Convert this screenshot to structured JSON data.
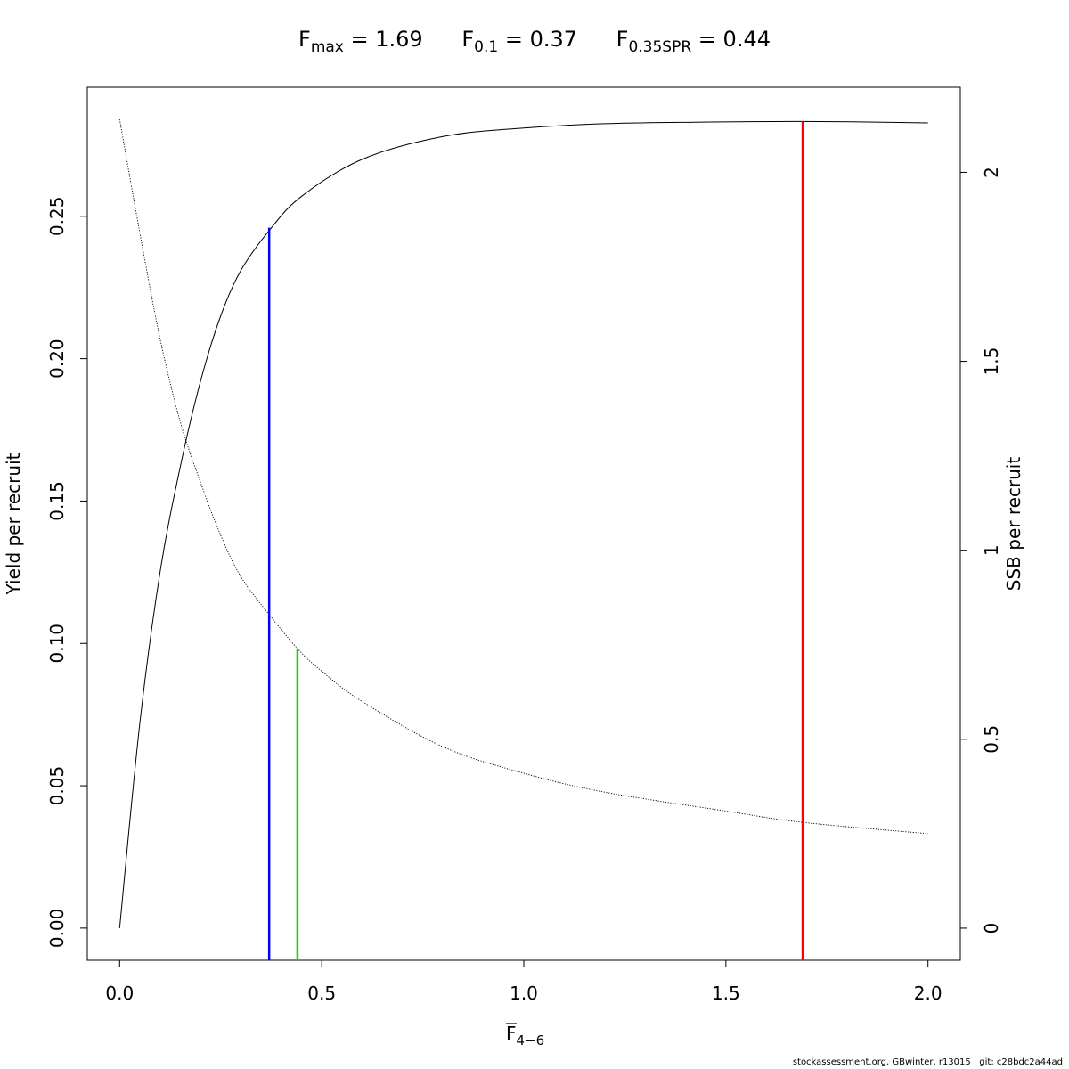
{
  "title": {
    "fmax": {
      "symbol": "F",
      "sub": "max",
      "value": "1.69"
    },
    "f01": {
      "symbol": "F",
      "sub": "0.1",
      "value": "0.37"
    },
    "f035spr": {
      "symbol": "F",
      "sub": "0.35SPR",
      "value": "0.44"
    }
  },
  "footer": "stockassessment.org, GBwinter, r13015 , git: c28bdc2a44ad",
  "chart_data": {
    "type": "line",
    "xlabel": {
      "base": "F",
      "sub": "4−6"
    },
    "ylabel_left": "Yield per recruit",
    "ylabel_right": "SSB per recruit",
    "xlim": [
      -0.08,
      2.08
    ],
    "ylim_left": [
      -0.0113,
      0.2953
    ],
    "ylim_right": [
      -0.085,
      2.225
    ],
    "x_ticks": [
      0.0,
      0.5,
      1.0,
      1.5,
      2.0
    ],
    "x_tick_labels": [
      "0.0",
      "0.5",
      "1.0",
      "1.5",
      "2.0"
    ],
    "y_left_ticks": [
      0.0,
      0.05,
      0.1,
      0.15,
      0.2,
      0.25
    ],
    "y_left_tick_labels": [
      "0.00",
      "0.05",
      "0.10",
      "0.15",
      "0.20",
      "0.25"
    ],
    "y_right_ticks": [
      0,
      0.5,
      1,
      1.5,
      2
    ],
    "y_right_tick_labels": [
      "0",
      "0.5",
      "1",
      "1.5",
      "2"
    ],
    "grid": false,
    "series": [
      {
        "axis": "left",
        "style": "solid",
        "color": "#000000",
        "x": [
          0,
          0.05,
          0.1,
          0.15,
          0.2,
          0.25,
          0.3,
          0.37,
          0.45,
          0.6,
          0.8,
          1.0,
          1.2,
          1.4,
          1.69,
          2.0
        ],
        "y": [
          0,
          0.072,
          0.125,
          0.162,
          0.192,
          0.215,
          0.231,
          0.245,
          0.257,
          0.27,
          0.278,
          0.281,
          0.2825,
          0.283,
          0.2833,
          0.2828
        ]
      },
      {
        "axis": "right",
        "style": "dotted",
        "color": "#000000",
        "x": [
          0,
          0.05,
          0.1,
          0.15,
          0.2,
          0.25,
          0.3,
          0.37,
          0.44,
          0.5,
          0.6,
          0.8,
          1.0,
          1.2,
          1.5,
          1.69,
          2.0
        ],
        "y": [
          2.14,
          1.84,
          1.56,
          1.34,
          1.18,
          1.04,
          0.93,
          0.83,
          0.74,
          0.68,
          0.6,
          0.48,
          0.41,
          0.36,
          0.31,
          0.28,
          0.25
        ]
      }
    ],
    "reference_lines": [
      {
        "name": "F0.1",
        "x": 0.37,
        "y_top": 0.246,
        "color": "#0000ff"
      },
      {
        "name": "F0.35SPR",
        "x": 0.44,
        "y_top": 0.098,
        "color": "#00dd00"
      },
      {
        "name": "Fmax",
        "x": 1.69,
        "y_top": 0.2833,
        "color": "#ff0000"
      }
    ]
  }
}
